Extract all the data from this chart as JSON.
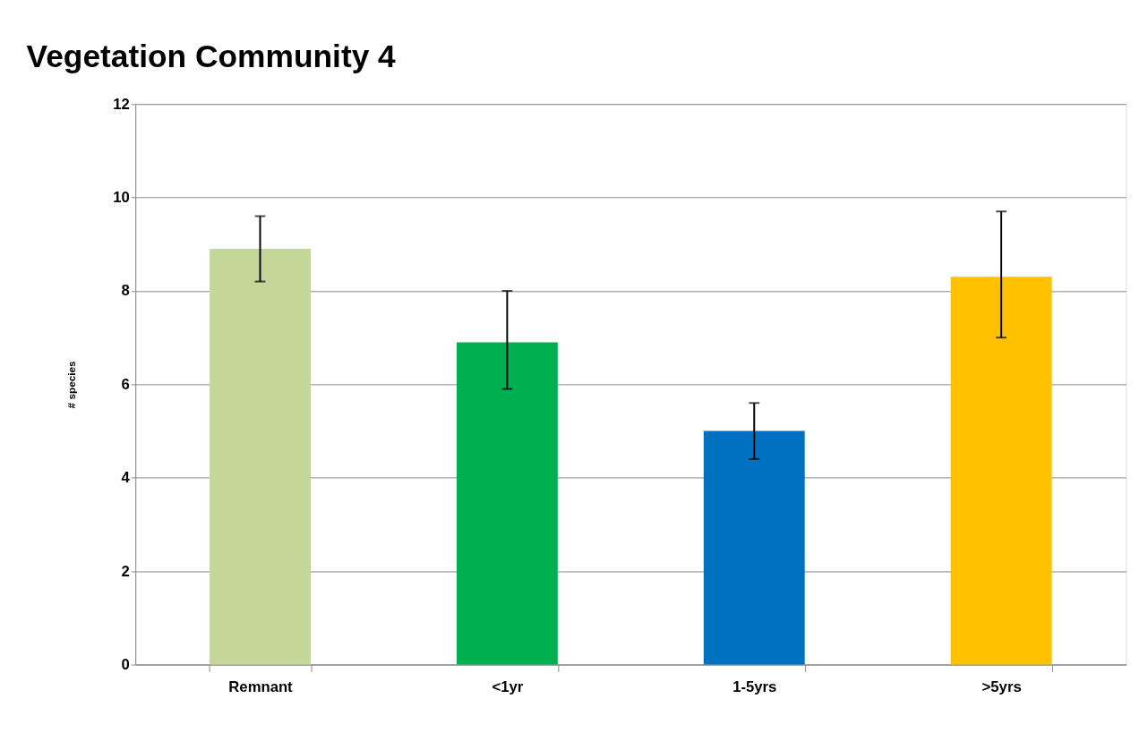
{
  "chart_data": {
    "type": "bar",
    "title": "Vegetation Community 4",
    "ylabel": "# species",
    "categories": [
      "Remnant",
      "<1yr",
      "1-5yrs",
      ">5yrs"
    ],
    "values": [
      8.9,
      6.9,
      5.0,
      8.3
    ],
    "colors": [
      "#c4d79b",
      "#00b050",
      "#0070c0",
      "#ffc000"
    ],
    "errors": [
      [
        8.2,
        9.6
      ],
      [
        5.9,
        8.0
      ],
      [
        4.4,
        5.6
      ],
      [
        7.0,
        9.7
      ]
    ],
    "ylim": [
      0,
      12
    ],
    "yticks": [
      0,
      2,
      4,
      6,
      8,
      10,
      12
    ],
    "grid": "y",
    "legend": false
  }
}
